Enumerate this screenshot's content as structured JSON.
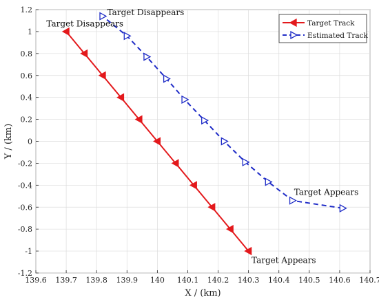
{
  "chart_data": {
    "type": "line",
    "title": "",
    "xlabel": "X / (km)",
    "ylabel": "Y / (km)",
    "xlim": [
      139.6,
      140.7
    ],
    "ylim": [
      -1.2,
      1.2
    ],
    "xticks": [
      139.6,
      139.7,
      139.8,
      139.9,
      140,
      140.1,
      140.2,
      140.3,
      140.4,
      140.5,
      140.6,
      140.7
    ],
    "xtick_labels": [
      "139.6",
      "139.7",
      "139.8",
      "139.9",
      "140",
      "140.1",
      "140.2",
      "140.3",
      "140.4",
      "140.5",
      "140.6",
      "140.7"
    ],
    "yticks": [
      -1.2,
      -1,
      -0.8,
      -0.6,
      -0.4,
      -0.2,
      0,
      0.2,
      0.4,
      0.6,
      0.8,
      1,
      1.2
    ],
    "ytick_labels": [
      "-1.2",
      "-1",
      "-0.8",
      "-0.6",
      "-0.4",
      "-0.2",
      "0",
      "0.2",
      "0.4",
      "0.6",
      "0.8",
      "1",
      "1.2"
    ],
    "grid": true,
    "legend_position": "top-right",
    "series": [
      {
        "name": "Target Track",
        "color": "#e3191c",
        "line_style": "solid",
        "marker": "triangle-left",
        "x": [
          140.3,
          140.24,
          140.18,
          140.12,
          140.06,
          140.0,
          139.94,
          139.88,
          139.82,
          139.76,
          139.7
        ],
        "y": [
          -1.0,
          -0.8,
          -0.6,
          -0.4,
          -0.2,
          0.0,
          0.2,
          0.4,
          0.6,
          0.8,
          1.0
        ]
      },
      {
        "name": "Estimated Track",
        "color": "#1f2cc7",
        "line_style": "dashed",
        "marker": "triangle-right",
        "x": [
          140.61,
          140.445,
          140.365,
          140.29,
          140.22,
          140.155,
          140.09,
          140.03,
          139.965,
          139.9,
          139.82
        ],
        "y": [
          -0.61,
          -0.54,
          -0.37,
          -0.19,
          0.0,
          0.19,
          0.38,
          0.57,
          0.77,
          0.96,
          1.14
        ]
      }
    ],
    "annotations": [
      {
        "text": "Target Disappears",
        "x": 139.635,
        "y": 1.045,
        "anchor": "start"
      },
      {
        "text": "Target Disappears",
        "x": 139.835,
        "y": 1.15,
        "anchor": "start"
      },
      {
        "text": "Target Appears",
        "x": 140.45,
        "y": -0.49,
        "anchor": "start"
      },
      {
        "text": "Target Appears",
        "x": 140.31,
        "y": -1.11,
        "anchor": "start"
      }
    ]
  }
}
